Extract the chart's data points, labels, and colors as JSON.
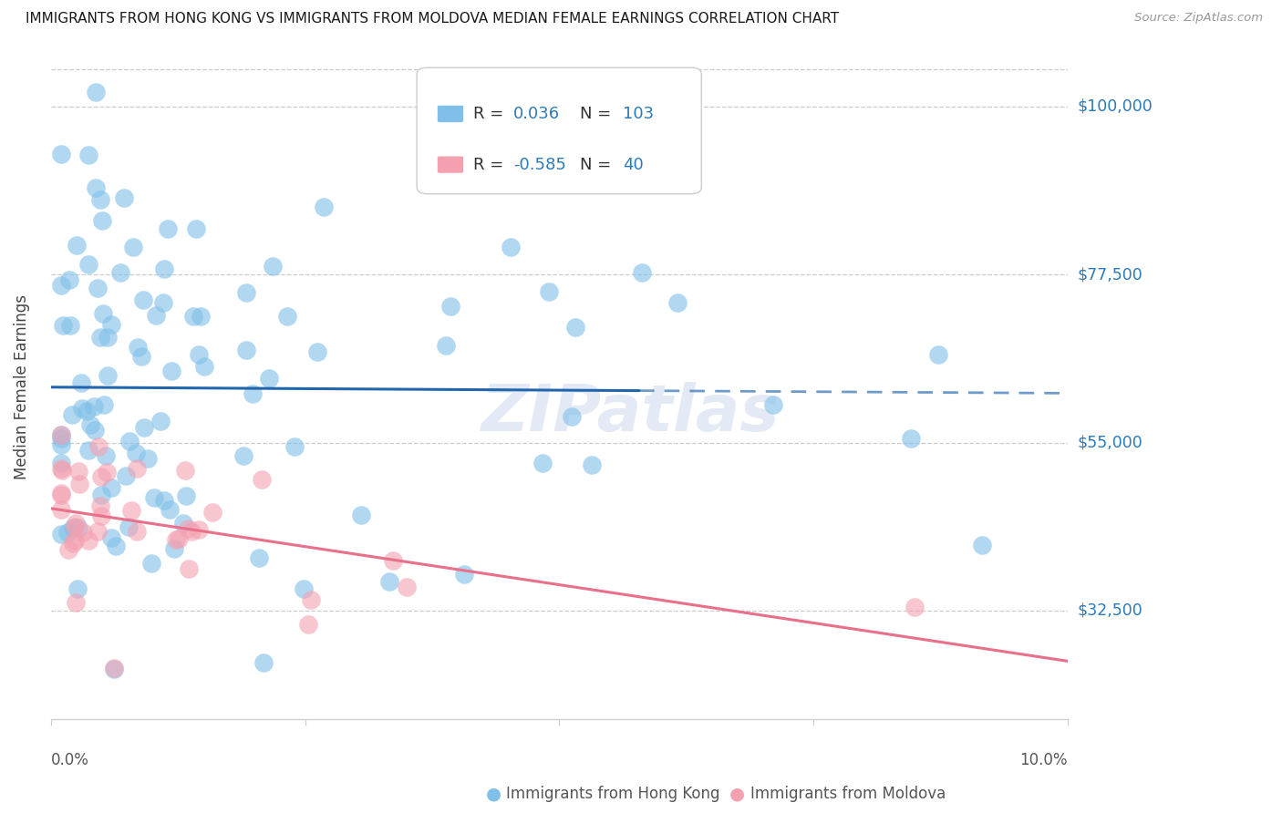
{
  "title": "IMMIGRANTS FROM HONG KONG VS IMMIGRANTS FROM MOLDOVA MEDIAN FEMALE EARNINGS CORRELATION CHART",
  "source": "Source: ZipAtlas.com",
  "ylabel": "Median Female Earnings",
  "ytick_labels": [
    "$100,000",
    "$77,500",
    "$55,000",
    "$32,500"
  ],
  "ytick_values": [
    100000,
    77500,
    55000,
    32500
  ],
  "ymin": 18000,
  "ymax": 107000,
  "xmin": 0.0,
  "xmax": 0.1,
  "hk_R": 0.036,
  "hk_N": 103,
  "md_R": -0.585,
  "md_N": 40,
  "hk_color": "#7fbfe8",
  "md_color": "#f4a0b0",
  "hk_line_color": "#2166ac",
  "md_line_color": "#e8708a",
  "watermark": "ZIPatlas",
  "hk_line_intercept": 54000,
  "hk_line_slope": 30000,
  "md_line_intercept": 48000,
  "md_line_slope": -330000,
  "hk_line_solid_end": 0.055,
  "hk_line_dash_start": 0.055
}
